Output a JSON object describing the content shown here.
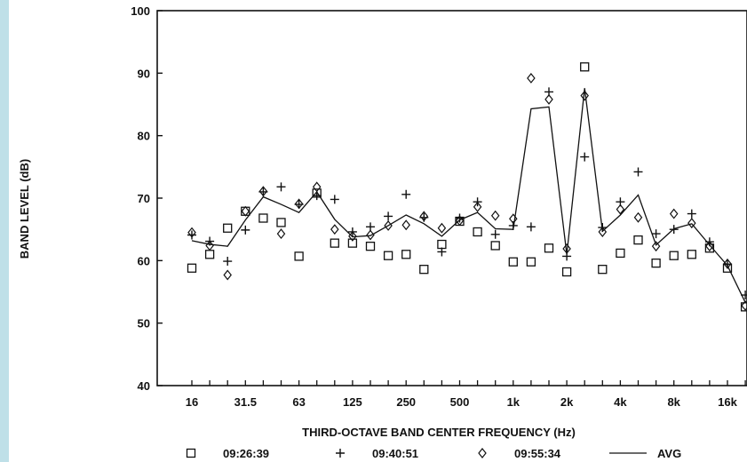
{
  "chart_data": {
    "type": "scatter",
    "xlabel": "THIRD-OCTAVE BAND CENTER FREQUENCY (Hz)",
    "ylabel": "BAND LEVEL (dB)",
    "ylim": [
      40,
      100
    ],
    "yticks": [
      40,
      50,
      60,
      70,
      80,
      90,
      100
    ],
    "x": [
      16,
      20,
      25,
      31.5,
      40,
      50,
      63,
      80,
      100,
      125,
      160,
      200,
      250,
      315,
      400,
      500,
      630,
      800,
      1000,
      1250,
      1600,
      2000,
      2500,
      3150,
      4000,
      5000,
      6300,
      8000,
      10000,
      12500,
      16000,
      20000
    ],
    "xtick_labels": [
      "16",
      "31.5",
      "63",
      "125",
      "250",
      "500",
      "1k",
      "2k",
      "4k",
      "8k",
      "16k"
    ],
    "xtick_values": [
      16,
      31.5,
      63,
      125,
      250,
      500,
      1000,
      2000,
      4000,
      8000,
      16000
    ],
    "grid": false,
    "legend_position": "bottom",
    "series": [
      {
        "name": "09:26:39",
        "marker": "square",
        "values": [
          58.8,
          61.0,
          65.2,
          67.9,
          66.8,
          66.1,
          60.7,
          70.8,
          62.8,
          62.8,
          62.3,
          60.8,
          61.0,
          58.6,
          62.6,
          66.3,
          64.6,
          62.4,
          59.8,
          59.8,
          62.0,
          58.2,
          91.0,
          58.6,
          61.2,
          63.3,
          59.6,
          60.8,
          61.0,
          62.0,
          58.8,
          52.6
        ]
      },
      {
        "name": "09:40:51",
        "marker": "plus",
        "values": [
          64.1,
          63.1,
          59.9,
          64.9,
          71.0,
          71.8,
          69.0,
          70.4,
          69.8,
          64.6,
          65.4,
          67.1,
          70.6,
          66.9,
          61.4,
          66.8,
          69.4,
          64.2,
          65.6,
          65.4,
          87.0,
          60.7,
          76.6,
          65.3,
          69.4,
          74.2,
          64.3,
          65.0,
          67.5,
          63.0,
          59.4,
          54.5
        ]
      },
      {
        "name": "09:55:34",
        "marker": "diamond",
        "values": [
          64.5,
          62.4,
          57.7,
          67.9,
          71.1,
          64.3,
          69.1,
          71.8,
          65.0,
          63.9,
          64.1,
          65.6,
          65.7,
          67.1,
          65.2,
          66.4,
          68.6,
          67.2,
          66.7,
          89.2,
          85.8,
          61.9,
          86.4,
          64.6,
          68.2,
          66.9,
          62.3,
          67.5,
          66.0,
          62.3,
          59.5,
          52.8
        ]
      },
      {
        "name": "AVG",
        "marker": "line",
        "values": [
          63.2,
          62.6,
          62.3,
          66.5,
          70.2,
          69.0,
          67.7,
          71.0,
          66.6,
          63.8,
          64.0,
          65.6,
          67.3,
          65.9,
          63.9,
          66.5,
          67.7,
          65.1,
          65.0,
          84.3,
          84.6,
          61.0,
          87.6,
          64.7,
          67.3,
          70.5,
          62.5,
          65.1,
          65.9,
          62.5,
          59.2,
          53.3
        ]
      }
    ]
  }
}
